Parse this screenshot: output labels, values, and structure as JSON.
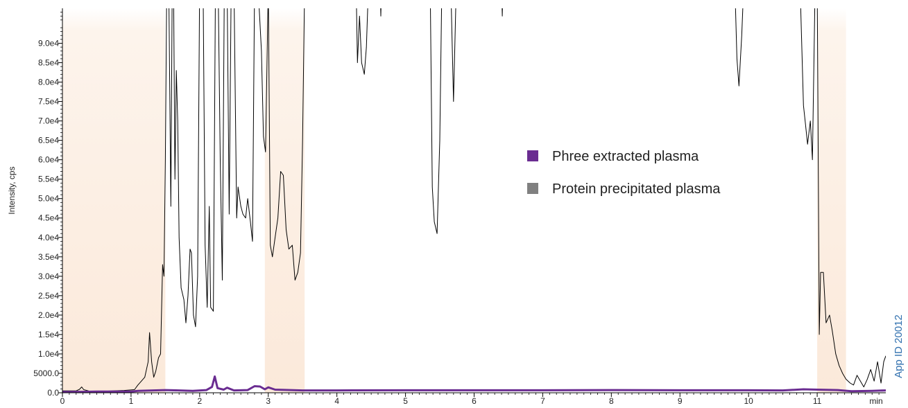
{
  "chart_data": {
    "type": "line",
    "title": "",
    "xlabel": "",
    "ylabel": "Intensity, cps",
    "x_unit_label": "min",
    "xlim": [
      0,
      12
    ],
    "ylim": [
      0,
      99000
    ],
    "x_ticks": [
      0,
      1,
      2,
      3,
      4,
      5,
      6,
      7,
      8,
      9,
      10,
      11
    ],
    "x_tick_labels": [
      "0",
      "1",
      "2",
      "3",
      "4",
      "5",
      "6",
      "7",
      "8",
      "9",
      "10",
      "11"
    ],
    "y_ticks": [
      0,
      5000,
      10000,
      15000,
      20000,
      25000,
      30000,
      35000,
      40000,
      45000,
      50000,
      55000,
      60000,
      65000,
      70000,
      75000,
      80000,
      85000,
      90000
    ],
    "y_tick_labels": [
      "0.0",
      "5000.0",
      "1.0e4",
      "1.5e4",
      "2.0e4",
      "2.5e4",
      "3.0e4",
      "3.5e4",
      "4.0e4",
      "4.5e4",
      "5.0e4",
      "5.5e4",
      "6.0e4",
      "6.5e4",
      "7.0e4",
      "7.5e4",
      "8.0e4",
      "8.5e4",
      "9.0e4"
    ],
    "grid": false,
    "legend_position": "center-right",
    "series": [
      {
        "name": "Phree extracted plasma",
        "color": "#6a2c91",
        "points": [
          [
            0,
            200
          ],
          [
            0.5,
            300
          ],
          [
            1.0,
            300
          ],
          [
            1.1,
            500
          ],
          [
            1.5,
            700
          ],
          [
            1.9,
            500
          ],
          [
            2.1,
            700
          ],
          [
            2.18,
            1500
          ],
          [
            2.22,
            4200
          ],
          [
            2.26,
            1200
          ],
          [
            2.35,
            800
          ],
          [
            2.4,
            1300
          ],
          [
            2.5,
            600
          ],
          [
            2.7,
            700
          ],
          [
            2.8,
            1700
          ],
          [
            2.88,
            1600
          ],
          [
            2.95,
            900
          ],
          [
            3.0,
            1400
          ],
          [
            3.1,
            800
          ],
          [
            3.5,
            600
          ],
          [
            4,
            600
          ],
          [
            5,
            650
          ],
          [
            6,
            650
          ],
          [
            7,
            650
          ],
          [
            8,
            700
          ],
          [
            9,
            650
          ],
          [
            10,
            650
          ],
          [
            10.5,
            600
          ],
          [
            10.8,
            900
          ],
          [
            11,
            800
          ],
          [
            11.3,
            700
          ],
          [
            11.5,
            400
          ],
          [
            11.8,
            500
          ],
          [
            12,
            600
          ]
        ]
      },
      {
        "name": "Protein precipitated plasma",
        "color": "#000000",
        "points": [
          [
            0,
            500
          ],
          [
            0.2,
            500
          ],
          [
            0.25,
            900
          ],
          [
            0.28,
            1500
          ],
          [
            0.31,
            800
          ],
          [
            0.4,
            400
          ],
          [
            0.6,
            400
          ],
          [
            0.9,
            600
          ],
          [
            1.05,
            800
          ],
          [
            1.1,
            2000
          ],
          [
            1.15,
            3000
          ],
          [
            1.2,
            4000
          ],
          [
            1.25,
            8000
          ],
          [
            1.27,
            15500
          ],
          [
            1.3,
            8000
          ],
          [
            1.33,
            4000
          ],
          [
            1.36,
            5500
          ],
          [
            1.4,
            9000
          ],
          [
            1.43,
            10000
          ],
          [
            1.46,
            33000
          ],
          [
            1.48,
            30000
          ],
          [
            1.5,
            60000
          ],
          [
            1.52,
            105000
          ],
          [
            1.55,
            105000
          ],
          [
            1.58,
            48000
          ],
          [
            1.6,
            105000
          ],
          [
            1.62,
            105000
          ],
          [
            1.64,
            55000
          ],
          [
            1.66,
            83000
          ],
          [
            1.68,
            70000
          ],
          [
            1.7,
            40000
          ],
          [
            1.73,
            27000
          ],
          [
            1.77,
            24000
          ],
          [
            1.8,
            18000
          ],
          [
            1.83,
            25000
          ],
          [
            1.86,
            37000
          ],
          [
            1.88,
            36000
          ],
          [
            1.91,
            20000
          ],
          [
            1.94,
            17000
          ],
          [
            1.97,
            30000
          ],
          [
            2.0,
            105000
          ],
          [
            2.05,
            105000
          ],
          [
            2.08,
            38000
          ],
          [
            2.11,
            22000
          ],
          [
            2.14,
            48000
          ],
          [
            2.16,
            22000
          ],
          [
            2.2,
            21000
          ],
          [
            2.23,
            105000
          ],
          [
            2.27,
            105000
          ],
          [
            2.3,
            60000
          ],
          [
            2.33,
            29000
          ],
          [
            2.36,
            105000
          ],
          [
            2.4,
            105000
          ],
          [
            2.43,
            46000
          ],
          [
            2.46,
            105000
          ],
          [
            2.5,
            105000
          ],
          [
            2.54,
            45000
          ],
          [
            2.56,
            53000
          ],
          [
            2.6,
            48000
          ],
          [
            2.63,
            46000
          ],
          [
            2.67,
            45000
          ],
          [
            2.7,
            50000
          ],
          [
            2.74,
            44000
          ],
          [
            2.77,
            39000
          ],
          [
            2.8,
            105000
          ],
          [
            2.85,
            105000
          ],
          [
            2.9,
            88000
          ],
          [
            2.93,
            66000
          ],
          [
            2.96,
            62000
          ],
          [
            3.0,
            105000
          ],
          [
            3.03,
            38000
          ],
          [
            3.06,
            35000
          ],
          [
            3.1,
            40000
          ],
          [
            3.14,
            45000
          ],
          [
            3.18,
            57000
          ],
          [
            3.22,
            56000
          ],
          [
            3.26,
            42000
          ],
          [
            3.3,
            37000
          ],
          [
            3.35,
            38000
          ],
          [
            3.39,
            29000
          ],
          [
            3.43,
            31000
          ],
          [
            3.47,
            36000
          ],
          [
            3.5,
            65000
          ],
          [
            3.53,
            105000
          ],
          [
            4.28,
            105000
          ],
          [
            4.3,
            85000
          ],
          [
            4.33,
            97000
          ],
          [
            4.36,
            85000
          ],
          [
            4.4,
            82000
          ],
          [
            4.43,
            89000
          ],
          [
            4.46,
            105000
          ],
          [
            4.63,
            105000
          ],
          [
            4.64,
            97000
          ],
          [
            4.65,
            105000
          ],
          [
            5.36,
            105000
          ],
          [
            5.39,
            53000
          ],
          [
            5.42,
            44000
          ],
          [
            5.46,
            41000
          ],
          [
            5.5,
            65000
          ],
          [
            5.53,
            105000
          ],
          [
            5.66,
            105000
          ],
          [
            5.7,
            75000
          ],
          [
            5.74,
            105000
          ],
          [
            6.4,
            105000
          ],
          [
            6.41,
            97000
          ],
          [
            6.42,
            105000
          ],
          [
            9.8,
            105000
          ],
          [
            9.83,
            86000
          ],
          [
            9.86,
            79000
          ],
          [
            9.9,
            92000
          ],
          [
            9.93,
            105000
          ],
          [
            10.75,
            105000
          ],
          [
            10.8,
            74000
          ],
          [
            10.83,
            69000
          ],
          [
            10.86,
            64000
          ],
          [
            10.9,
            70000
          ],
          [
            10.93,
            60000
          ],
          [
            10.97,
            105000
          ],
          [
            11.0,
            105000
          ],
          [
            11.03,
            15000
          ],
          [
            11.05,
            31000
          ],
          [
            11.09,
            31000
          ],
          [
            11.13,
            18000
          ],
          [
            11.18,
            20000
          ],
          [
            11.22,
            16000
          ],
          [
            11.27,
            10000
          ],
          [
            11.32,
            7000
          ],
          [
            11.37,
            5000
          ],
          [
            11.42,
            3500
          ],
          [
            11.48,
            2500
          ],
          [
            11.53,
            2000
          ],
          [
            11.58,
            4500
          ],
          [
            11.63,
            3000
          ],
          [
            11.68,
            1500
          ],
          [
            11.73,
            3500
          ],
          [
            11.78,
            6000
          ],
          [
            11.83,
            3000
          ],
          [
            11.88,
            8000
          ],
          [
            11.93,
            2500
          ],
          [
            11.97,
            8000
          ],
          [
            12,
            9500
          ]
        ]
      }
    ]
  },
  "side_label": {
    "text": "App ID 20012",
    "color": "#2f6fae"
  },
  "background_band_color": "#fbe9da"
}
